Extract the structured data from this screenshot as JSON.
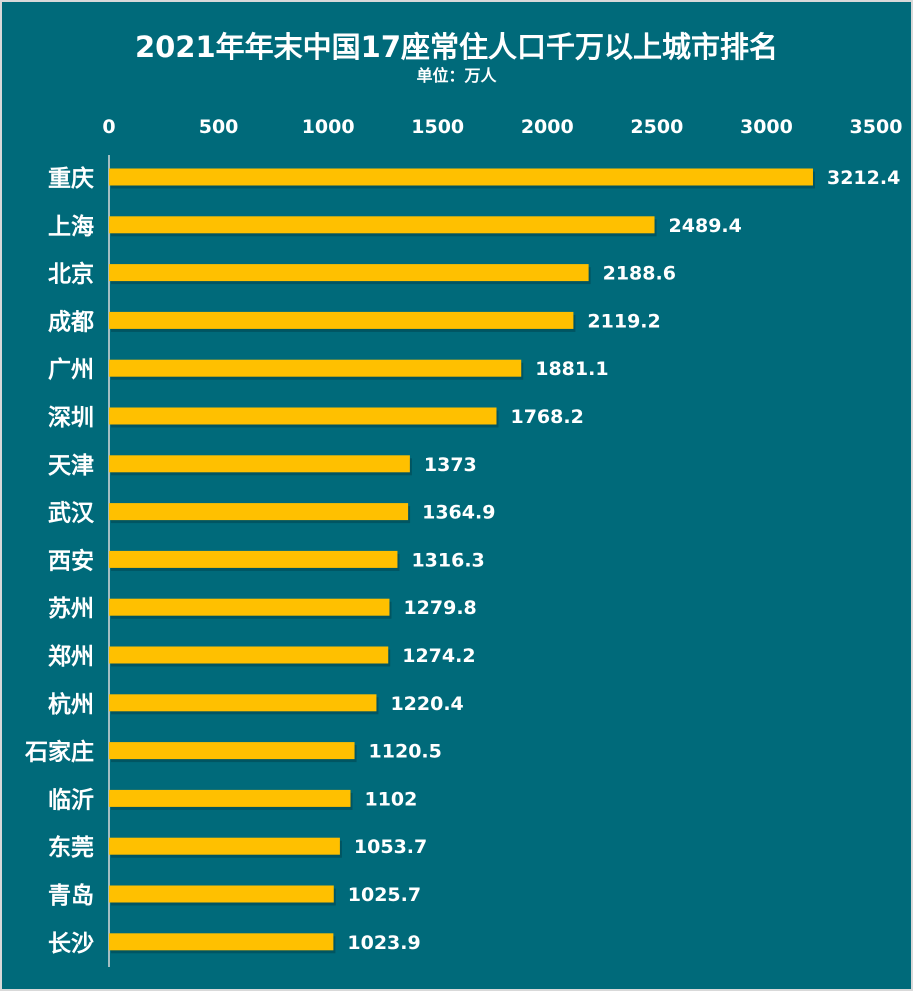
{
  "chart_data": {
    "type": "bar",
    "orientation": "horizontal",
    "title": "2021年年末中国17座常住人口千万以上城市排名",
    "subtitle": "单位：万人",
    "categories": [
      "重庆",
      "上海",
      "北京",
      "成都",
      "广州",
      "深圳",
      "天津",
      "武汉",
      "西安",
      "苏州",
      "郑州",
      "杭州",
      "石家庄",
      "临沂",
      "东莞",
      "青岛",
      "长沙"
    ],
    "values": [
      3212.4,
      2489.4,
      2188.6,
      2119.2,
      1881.1,
      1768.2,
      1373,
      1364.9,
      1316.3,
      1279.8,
      1274.2,
      1220.4,
      1120.5,
      1102,
      1053.7,
      1025.7,
      1023.9
    ],
    "value_labels": [
      "3212.4",
      "2489.4",
      "2188.6",
      "2119.2",
      "1881.1",
      "1768.2",
      "1373",
      "1364.9",
      "1316.3",
      "1279.8",
      "1274.2",
      "1220.4",
      "1120.5",
      "1102",
      "1053.7",
      "1025.7",
      "1023.9"
    ],
    "xlim": [
      0,
      3500
    ],
    "x_ticks": [
      "0",
      "500",
      "1000",
      "1500",
      "2000",
      "2500",
      "3000",
      "3500"
    ],
    "x_axis_position": "top",
    "grid": false,
    "legend": "none",
    "colors": {
      "bar": "#ffc000",
      "background": "#006a7a",
      "text": "#ffffff"
    }
  }
}
